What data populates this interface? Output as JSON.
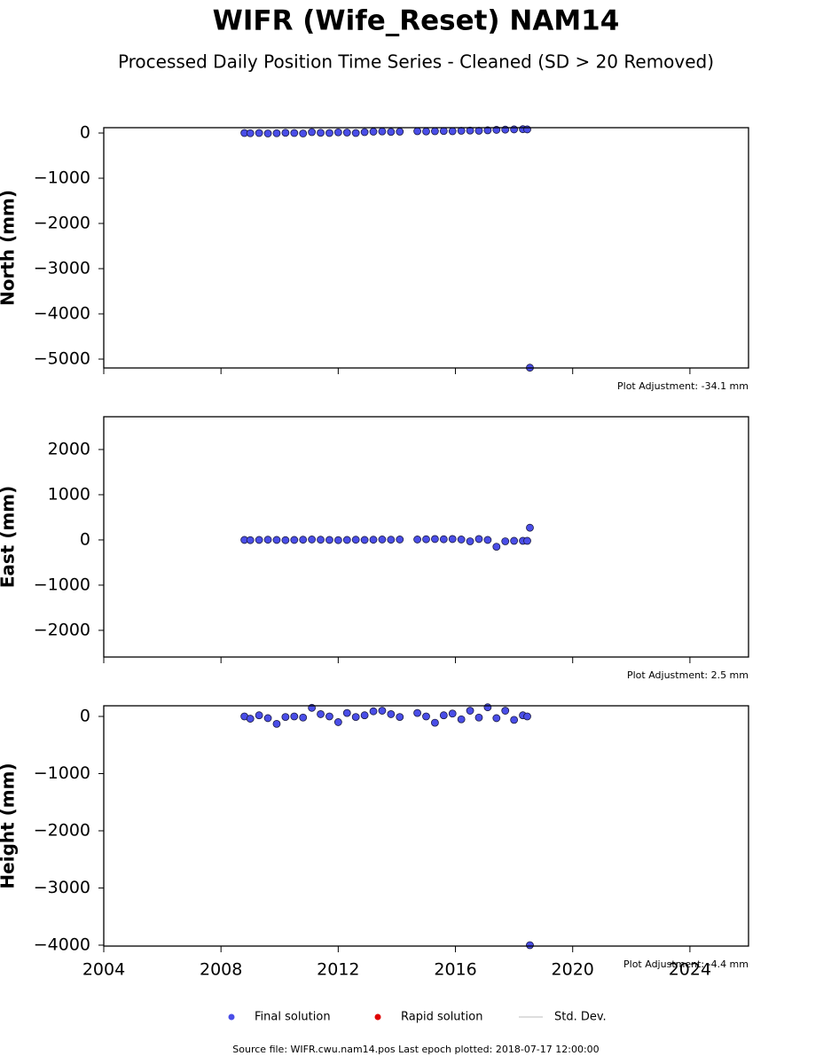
{
  "title": "WIFR (Wife_Reset) NAM14",
  "subtitle": "Processed Daily Position Time Series - Cleaned (SD > 20 Removed)",
  "chart_data": [
    {
      "type": "scatter",
      "ylabel": "North (mm)",
      "annotation": "Plot Adjustment: -34.1 mm",
      "xlim": [
        2004,
        2026
      ],
      "xticks": [
        2004,
        2008,
        2012,
        2016,
        2020,
        2024
      ],
      "show_xtick_labels": false,
      "ylim": [
        -5196,
        118
      ],
      "yticks": [
        {
          "value": -5000,
          "label": "−5000"
        },
        {
          "value": -4000,
          "label": "−4000"
        },
        {
          "value": -3000,
          "label": "−3000"
        },
        {
          "value": -2000,
          "label": "−2000"
        },
        {
          "value": -1000,
          "label": "−1000"
        },
        0
      ],
      "series": [
        {
          "color": "#4a4ee8",
          "edgecolor": "#1a1a40",
          "x": [
            2008.8,
            2009.0,
            2009.3,
            2009.6,
            2009.9,
            2010.2,
            2010.5,
            2010.8,
            2011.1,
            2011.4,
            2011.7,
            2012.0,
            2012.3,
            2012.6,
            2012.9,
            2013.2,
            2013.5,
            2013.8,
            2014.1,
            2014.7,
            2015.0,
            2015.3,
            2015.6,
            2015.9,
            2016.2,
            2016.5,
            2016.8,
            2017.1,
            2017.4,
            2017.7,
            2018.0,
            2018.3,
            2018.45,
            2018.54
          ],
          "values": [
            0,
            -5,
            0,
            -10,
            -5,
            5,
            0,
            -10,
            20,
            5,
            0,
            15,
            10,
            0,
            20,
            30,
            35,
            25,
            30,
            40,
            35,
            40,
            45,
            40,
            50,
            55,
            50,
            60,
            70,
            75,
            80,
            85,
            80,
            -5190
          ]
        }
      ]
    },
    {
      "type": "scatter",
      "ylabel": "East (mm)",
      "annotation": "Plot Adjustment: 2.5 mm",
      "xlim": [
        2004,
        2026
      ],
      "xticks": [
        2004,
        2008,
        2012,
        2016,
        2020,
        2024
      ],
      "show_xtick_labels": false,
      "ylim": [
        -2590,
        2725
      ],
      "yticks": [
        {
          "value": -2000,
          "label": "−2000"
        },
        {
          "value": -1000,
          "label": "−1000"
        },
        0,
        1000,
        2000
      ],
      "series": [
        {
          "color": "#4a4ee8",
          "edgecolor": "#1a1a40",
          "x": [
            2008.8,
            2009.0,
            2009.3,
            2009.6,
            2009.9,
            2010.2,
            2010.5,
            2010.8,
            2011.1,
            2011.4,
            2011.7,
            2012.0,
            2012.3,
            2012.6,
            2012.9,
            2013.2,
            2013.5,
            2013.8,
            2014.1,
            2014.7,
            2015.0,
            2015.3,
            2015.6,
            2015.9,
            2016.2,
            2016.5,
            2016.8,
            2017.1,
            2017.4,
            2017.7,
            2018.0,
            2018.3,
            2018.45,
            2018.54
          ],
          "values": [
            0,
            -5,
            0,
            5,
            0,
            -5,
            0,
            5,
            10,
            5,
            0,
            -5,
            0,
            5,
            0,
            5,
            10,
            5,
            10,
            10,
            15,
            20,
            15,
            20,
            10,
            -30,
            20,
            0,
            -150,
            -30,
            -20,
            -20,
            -20,
            270
          ]
        }
      ]
    },
    {
      "type": "scatter",
      "ylabel": "Height (mm)",
      "annotation": "Plot Adjustment: -4.4 mm",
      "xlim": [
        2004,
        2026
      ],
      "xticks": [
        2004,
        2008,
        2012,
        2016,
        2020,
        2024
      ],
      "show_xtick_labels": true,
      "ylim": [
        -4016,
        186
      ],
      "yticks": [
        {
          "value": -4000,
          "label": "−4000"
        },
        {
          "value": -3000,
          "label": "−3000"
        },
        {
          "value": -2000,
          "label": "−2000"
        },
        {
          "value": -1000,
          "label": "−1000"
        },
        0
      ],
      "series": [
        {
          "color": "#4a4ee8",
          "edgecolor": "#1a1a40",
          "x": [
            2008.8,
            2009.0,
            2009.3,
            2009.6,
            2009.9,
            2010.2,
            2010.5,
            2010.8,
            2011.1,
            2011.4,
            2011.7,
            2012.0,
            2012.3,
            2012.6,
            2012.9,
            2013.2,
            2013.5,
            2013.8,
            2014.1,
            2014.7,
            2015.0,
            2015.3,
            2015.6,
            2015.9,
            2016.2,
            2016.5,
            2016.8,
            2017.1,
            2017.4,
            2017.7,
            2018.0,
            2018.3,
            2018.45,
            2018.54
          ],
          "values": [
            0,
            -40,
            20,
            -30,
            -130,
            -10,
            0,
            -20,
            150,
            40,
            0,
            -100,
            60,
            -10,
            20,
            90,
            100,
            40,
            -10,
            60,
            0,
            -110,
            20,
            50,
            -50,
            100,
            -20,
            160,
            -30,
            100,
            -60,
            20,
            0,
            -4000
          ]
        }
      ]
    }
  ],
  "legend": [
    {
      "name": "Final solution",
      "color": "#4a4ee8",
      "marker": "circle"
    },
    {
      "name": "Rapid solution",
      "color": "#e00000",
      "marker": "circle"
    },
    {
      "name": "Std. Dev.",
      "color": "#d3d3d3",
      "marker": "line"
    }
  ],
  "footer": "Source file: WIFR.cwu.nam14.pos  Last epoch plotted: 2018-07-17 12:00:00"
}
